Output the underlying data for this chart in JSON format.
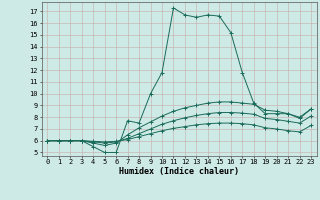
{
  "xlabel": "Humidex (Indice chaleur)",
  "bg_color": "#ceeae6",
  "grid_color": "#c8aaaa",
  "line_color": "#1a6b5a",
  "xlim": [
    -0.5,
    23.5
  ],
  "ylim": [
    4.7,
    17.8
  ],
  "yticks": [
    5,
    6,
    7,
    8,
    9,
    10,
    11,
    12,
    13,
    14,
    15,
    16,
    17
  ],
  "xticks": [
    0,
    1,
    2,
    3,
    4,
    5,
    6,
    7,
    8,
    9,
    10,
    11,
    12,
    13,
    14,
    15,
    16,
    17,
    18,
    19,
    20,
    21,
    22,
    23
  ],
  "series": [
    [
      6.0,
      6.0,
      6.0,
      6.0,
      5.5,
      5.0,
      5.0,
      7.7,
      7.5,
      10.0,
      11.8,
      17.3,
      16.7,
      16.5,
      16.7,
      16.6,
      15.2,
      11.8,
      9.2,
      8.3,
      8.3,
      8.3,
      7.9,
      8.7
    ],
    [
      6.0,
      6.0,
      6.0,
      6.0,
      5.8,
      5.6,
      5.8,
      6.5,
      7.1,
      7.6,
      8.1,
      8.5,
      8.8,
      9.0,
      9.2,
      9.3,
      9.3,
      9.2,
      9.1,
      8.6,
      8.5,
      8.3,
      8.0,
      8.7
    ],
    [
      6.0,
      6.0,
      6.0,
      6.0,
      5.9,
      5.8,
      5.9,
      6.2,
      6.6,
      7.0,
      7.4,
      7.7,
      7.95,
      8.15,
      8.3,
      8.4,
      8.4,
      8.35,
      8.25,
      7.9,
      7.8,
      7.65,
      7.5,
      8.1
    ],
    [
      6.0,
      6.0,
      6.0,
      6.0,
      5.95,
      5.9,
      5.95,
      6.1,
      6.35,
      6.6,
      6.85,
      7.05,
      7.2,
      7.35,
      7.45,
      7.5,
      7.5,
      7.45,
      7.35,
      7.1,
      7.0,
      6.85,
      6.75,
      7.3
    ]
  ],
  "xlabel_fontsize": 6.0,
  "tick_fontsize": 5.0
}
